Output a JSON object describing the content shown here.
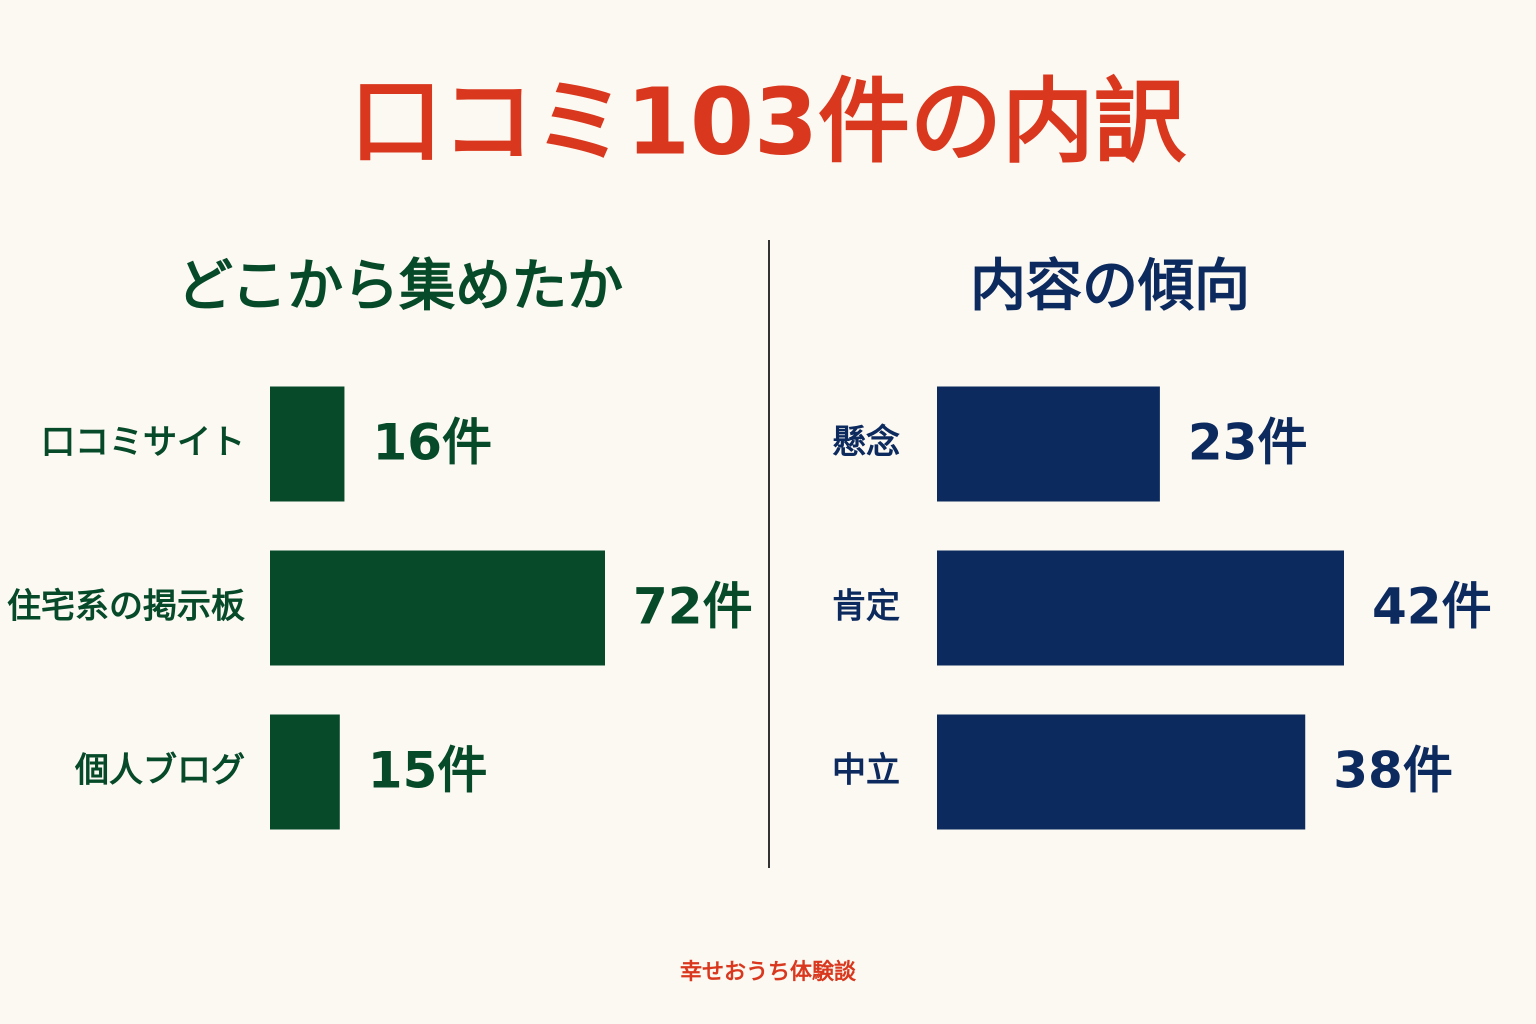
{
  "title": "口コミ103件の内訳",
  "footer": "幸せおうち体験談",
  "chart_data": [
    {
      "type": "bar",
      "orientation": "horizontal",
      "title": "どこから集めたか",
      "categories": [
        "口コミサイト",
        "住宅系の掲示板",
        "個人ブログ"
      ],
      "values": [
        16,
        72,
        15
      ],
      "value_labels": [
        "16件",
        "72件",
        "15件"
      ],
      "color": "#064a2a"
    },
    {
      "type": "bar",
      "orientation": "horizontal",
      "title": "内容の傾向",
      "categories": [
        "懸念",
        "肯定",
        "中立"
      ],
      "values": [
        23,
        42,
        38
      ],
      "value_labels": [
        "23件",
        "42件",
        "38件"
      ],
      "color": "#0c2a5e"
    }
  ]
}
